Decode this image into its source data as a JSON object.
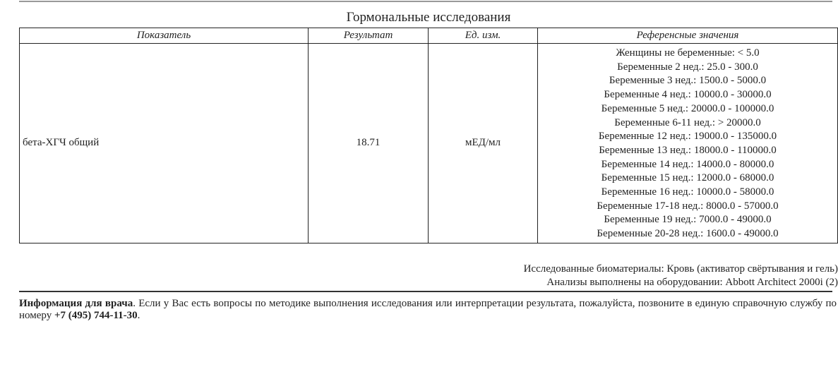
{
  "section_title": "Гормональные исследования",
  "table": {
    "headers": [
      "Показатель",
      "Результат",
      "Ед. изм.",
      "Референсные значения"
    ],
    "rows": [
      {
        "name": "бета-ХГЧ общий",
        "result": "18.71",
        "unit": "мЕД/мл",
        "references": [
          "Женщины не беременные: < 5.0",
          "Беременные 2 нед.: 25.0 - 300.0",
          "Беременные 3 нед.: 1500.0 - 5000.0",
          "Беременные 4 нед.: 10000.0 - 30000.0",
          "Беременные 5 нед.: 20000.0 - 100000.0",
          "Беременные 6-11 нед.: > 20000.0",
          "Беременные 12 нед.: 19000.0 - 135000.0",
          "Беременные 13 нед.: 18000.0 - 110000.0",
          "Беременные 14 нед.: 14000.0 - 80000.0",
          "Беременные 15 нед.: 12000.0 - 68000.0",
          "Беременные 16 нед.: 10000.0 - 58000.0",
          "Беременные 17-18 нед.: 8000.0 - 57000.0",
          "Беременные 19 нед.: 7000.0 - 49000.0",
          "Беременные 20-28 нед.: 1600.0 - 49000.0"
        ]
      }
    ]
  },
  "biomaterial": "Исследованные биоматериалы: Кровь (активатор свёртывания и гель)",
  "equipment": "Анализы выполнены на оборудовании: Abbott Architect 2000i (2)",
  "info": {
    "bold_lead": "Информация для врача",
    "text": ". Если у Вас есть вопросы по методике выполнения исследования или интерпретации результата, пожалуйста, позвоните в единую справочную службу по номеру ",
    "phone": "+7 (495) 744-11-30",
    "end": "."
  }
}
